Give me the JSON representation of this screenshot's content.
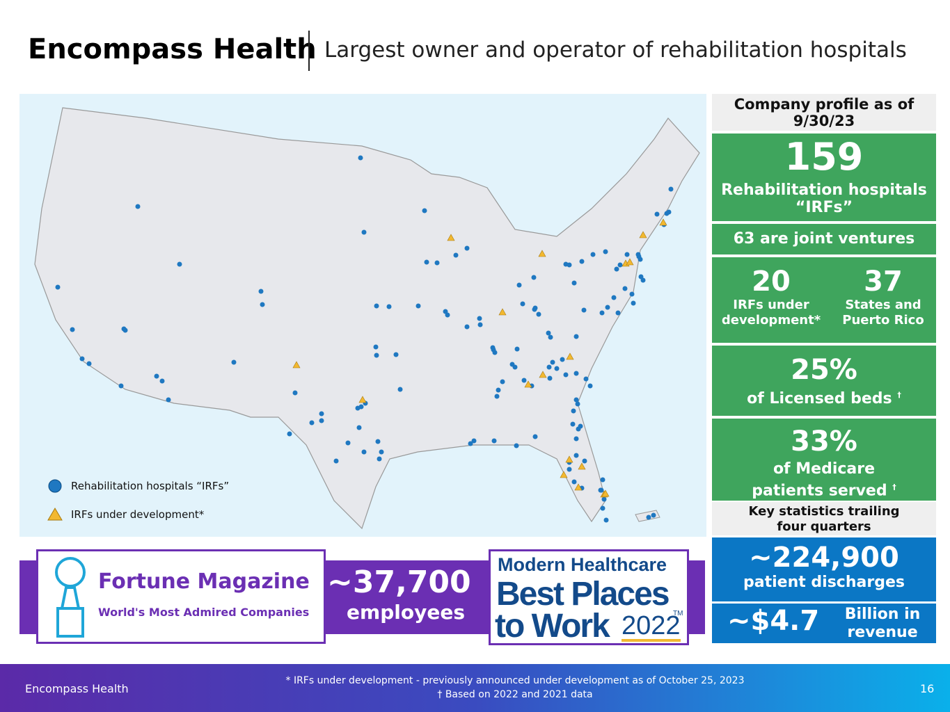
{
  "header": {
    "title": "Encompass Health",
    "subtitle": "Largest owner and operator of rehabilitation hospitals"
  },
  "map": {
    "legend": [
      "Rehabilitation hospitals “IRFs”",
      "IRFs under development*"
    ]
  },
  "profile": {
    "heading": "Company profile as of 9/30/23",
    "hospitals": {
      "value": "159",
      "label": "Rehabilitation hospitals “IRFs”"
    },
    "joint_ventures": "63 are joint ventures",
    "development": {
      "value": "20",
      "label": "IRFs under development*"
    },
    "states": {
      "value": "37",
      "label": "States and Puerto Rico"
    },
    "beds": {
      "value": "25%",
      "label": "of Licensed beds",
      "mark": "†"
    },
    "medicare": {
      "value": "33%",
      "label": "of Medicare patients served",
      "mark": "†"
    }
  },
  "stats": {
    "heading": "Key statistics trailing four quarters",
    "discharges": {
      "value": "~224,900",
      "label": "patient discharges"
    },
    "revenue": {
      "value": "~$4.7",
      "label": "Billion in revenue"
    }
  },
  "awards": {
    "fortune": {
      "title": "Fortune Magazine",
      "subtitle": "World's Most Admired Companies"
    },
    "employees": {
      "value": "~37,700",
      "label": "employees"
    },
    "modern": {
      "line1": "Modern Healthcare",
      "line2": "Best Places",
      "line3": "to Work",
      "year": "2022",
      "tm": "TM"
    }
  },
  "footer": {
    "left": "Encompass Health",
    "note1": "* IRFs under development - previously announced under development as of October 25, 2023",
    "note2": "† Based on 2022 and 2021 data",
    "page": "16"
  }
}
